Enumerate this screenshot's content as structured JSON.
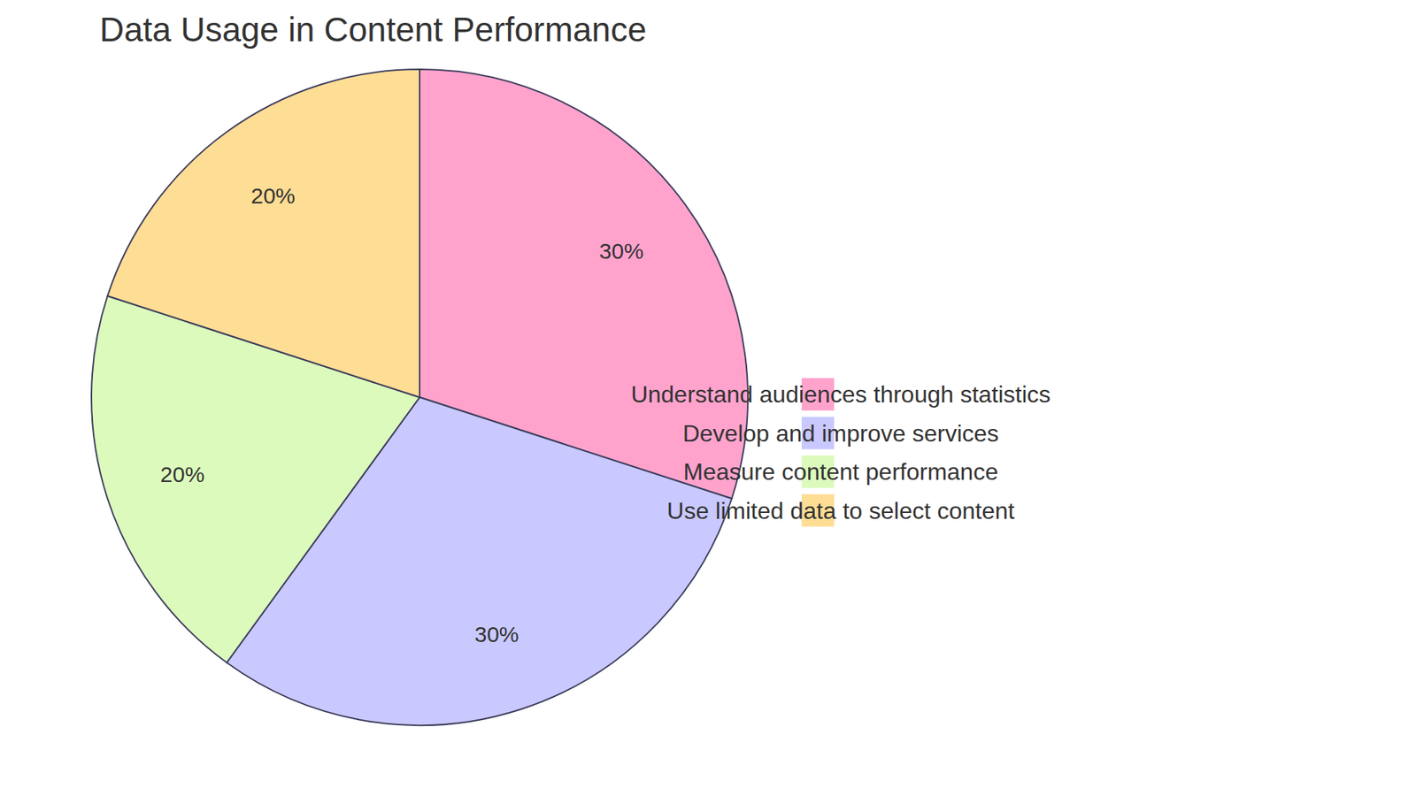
{
  "chart_data": {
    "type": "pie",
    "title": "Data Usage in Content Performance",
    "categories": [
      "Understand audiences through statistics",
      "Develop and improve services",
      "Measure content performance",
      "Use limited data to select content"
    ],
    "values": [
      30,
      30,
      20,
      20
    ],
    "value_labels": [
      "30%",
      "30%",
      "20%",
      "20%"
    ],
    "colors": [
      "#ffa3cd",
      "#c9c9ff",
      "#dcfabc",
      "#fedd95"
    ],
    "data_labels": true,
    "legend": "right"
  }
}
